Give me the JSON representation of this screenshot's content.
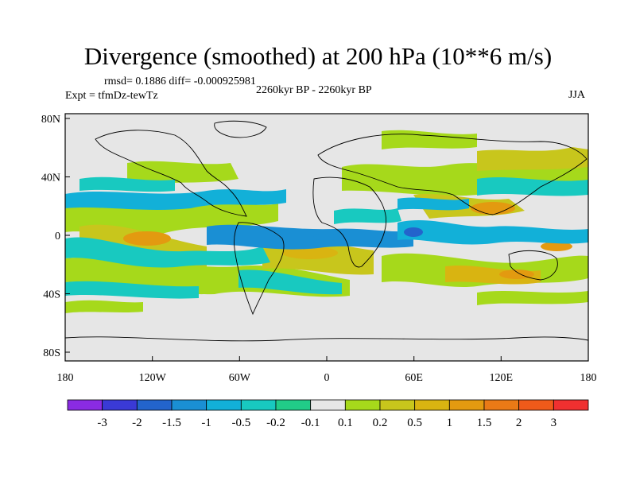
{
  "title": "Divergence (smoothed) at 200 hPa (10**6 m/s)",
  "stats": "rmsd= 0.1886 diff= -0.000925981",
  "expt": "Expt = tfmDz-tewTz",
  "period": "2260kyr BP - 2260kyr BP",
  "season": "JJA",
  "lon_ticks": [
    "180",
    "120W",
    "60W",
    "0",
    "60E",
    "120E",
    "180"
  ],
  "lat_ticks": [
    "80N",
    "40N",
    "0",
    "40S",
    "80S"
  ],
  "colorbar": {
    "labels": [
      "-3",
      "-2",
      "-1.5",
      "-1",
      "-0.5",
      "-0.2",
      "-0.1",
      "0.1",
      "0.2",
      "0.5",
      "1",
      "1.5",
      "2",
      "3"
    ],
    "colors": [
      "#8a2be2",
      "#3a3ad6",
      "#2364cc",
      "#1a8fd4",
      "#12b0d8",
      "#18c9c0",
      "#21cc88",
      "#e6e6e6",
      "#a6d91b",
      "#c8c61c",
      "#d9b411",
      "#e39a10",
      "#ea7a16",
      "#ef5a1a",
      "#f03030"
    ]
  }
}
